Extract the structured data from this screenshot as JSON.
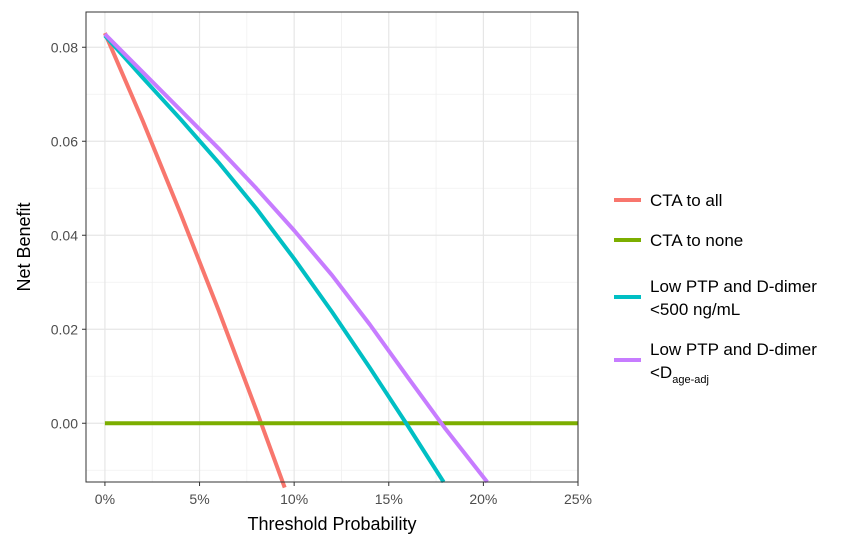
{
  "chart_data": {
    "type": "line",
    "xlabel": "Threshold Probability",
    "ylabel": "Net Benefit",
    "xlim": [
      -0.01,
      0.25
    ],
    "ylim": [
      -0.0125,
      0.0875
    ],
    "x_ticks": [
      0,
      0.05,
      0.1,
      0.15,
      0.2,
      0.25
    ],
    "x_tick_labels": [
      "0%",
      "5%",
      "10%",
      "15%",
      "20%",
      "25%"
    ],
    "y_ticks": [
      0.0,
      0.02,
      0.04,
      0.06,
      0.08
    ],
    "y_tick_labels": [
      "0.00",
      "0.02",
      "0.04",
      "0.06",
      "0.08"
    ],
    "grid": true,
    "legend_position": "right",
    "series": [
      {
        "name": "CTA to all",
        "color": "#F8766D",
        "points": [
          [
            0.0,
            0.083
          ],
          [
            0.02,
            0.0643
          ],
          [
            0.04,
            0.0446
          ],
          [
            0.06,
            0.0241
          ],
          [
            0.08,
            0.0028
          ],
          [
            0.095,
            -0.0137
          ]
        ]
      },
      {
        "name": "CTA to none",
        "color": "#7CAE00",
        "points": [
          [
            0.0,
            0.0
          ],
          [
            0.25,
            0.0
          ]
        ]
      },
      {
        "name": "Low PTP and D-dimer <500 ng/mL",
        "color": "#00BFC4",
        "points": [
          [
            0.0,
            0.0825
          ],
          [
            0.02,
            0.0735
          ],
          [
            0.04,
            0.0647
          ],
          [
            0.06,
            0.0555
          ],
          [
            0.08,
            0.0457
          ],
          [
            0.1,
            0.035
          ],
          [
            0.12,
            0.0237
          ],
          [
            0.14,
            0.0118
          ],
          [
            0.16,
            -0.0005
          ],
          [
            0.179,
            -0.0125
          ]
        ]
      },
      {
        "name": "Low PTP and D-dimer <D",
        "name_subscript": "age-adj",
        "color": "#C77CFF",
        "points": [
          [
            0.0,
            0.0828
          ],
          [
            0.02,
            0.0747
          ],
          [
            0.04,
            0.0666
          ],
          [
            0.06,
            0.0585
          ],
          [
            0.08,
            0.05
          ],
          [
            0.1,
            0.041
          ],
          [
            0.12,
            0.0315
          ],
          [
            0.14,
            0.021
          ],
          [
            0.16,
            0.0098
          ],
          [
            0.18,
            -0.0012
          ],
          [
            0.202,
            -0.0125
          ]
        ]
      }
    ],
    "legend": {
      "entries": [
        {
          "lines": [
            "CTA to all"
          ],
          "color": "#F8766D"
        },
        {
          "lines": [
            "CTA to none"
          ],
          "color": "#7CAE00"
        },
        {
          "lines": [
            "Low PTP and D-dimer",
            "<500 ng/mL"
          ],
          "color": "#00BFC4"
        },
        {
          "lines": [
            "Low PTP and D-dimer",
            "<D"
          ],
          "subscript": "age-adj",
          "color": "#C77CFF"
        }
      ]
    }
  }
}
